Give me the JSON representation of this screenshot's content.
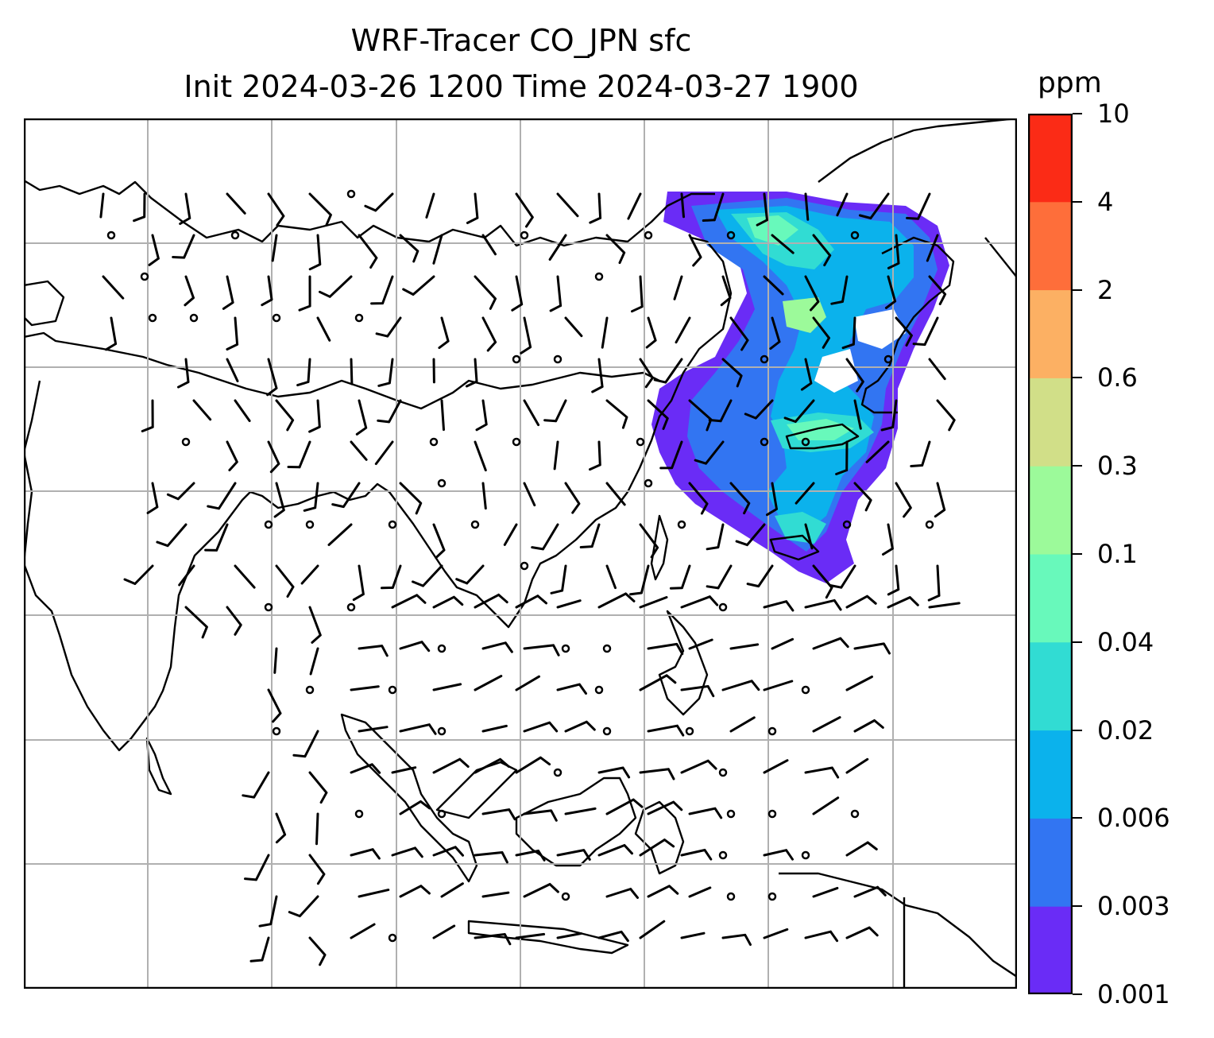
{
  "title": {
    "line1": "WRF-Tracer CO_JPN sfc",
    "line2": "Init 2024-03-26 1200 Time 2024-03-27 1900"
  },
  "colorbar": {
    "unit": "ppm",
    "labels": [
      "0.001",
      "0.003",
      "0.006",
      "0.02",
      "0.04",
      "0.1",
      "0.3",
      "0.6",
      "2",
      "4",
      "10"
    ],
    "colors": [
      "#6a2cf6",
      "#3275f2",
      "#0bb2ec",
      "#31dcd3",
      "#68f9bb",
      "#9cfa9a",
      "#d1df88",
      "#fcb063",
      "#fe6e3a",
      "#fb2b16"
    ]
  },
  "map": {
    "gridlines": true,
    "variable": "CO tracer (JPN) at surface",
    "wind_barbs": true
  }
}
